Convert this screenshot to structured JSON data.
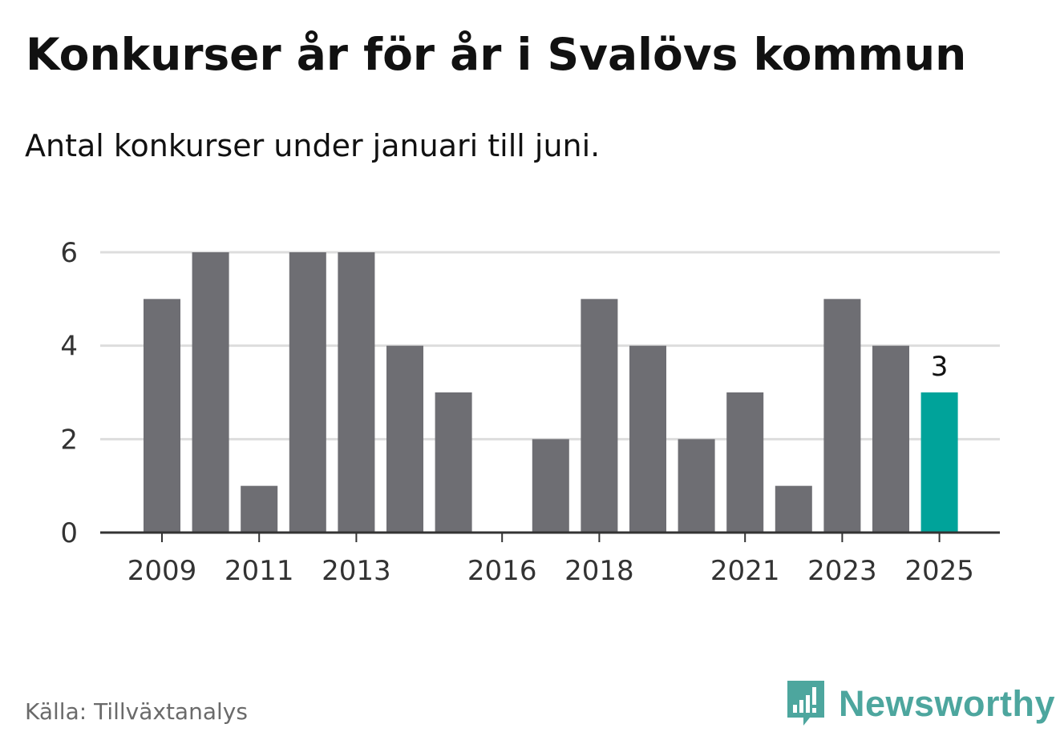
{
  "header": {
    "title": "Konkurser år för år i Svalövs kommun",
    "subtitle": "Antal konkurser under januari till juni."
  },
  "footer": {
    "source": "Källa: Tillväxtanalys",
    "brand": "Newsworthy",
    "brand_icon": "newsworthy-logo-icon"
  },
  "colors": {
    "bar": "#6e6e73",
    "highlight": "#00a39a",
    "grid": "#dddddd",
    "axis": "#333333",
    "brand": "#4da69e"
  },
  "chart_data": {
    "type": "bar",
    "categories": [
      "2009",
      "2010",
      "2011",
      "2012",
      "2013",
      "2014",
      "2015",
      "2016",
      "2017",
      "2018",
      "2019",
      "2020",
      "2021",
      "2022",
      "2023",
      "2024",
      "2025"
    ],
    "values": [
      5,
      6,
      1,
      6,
      6,
      4,
      3,
      0,
      2,
      5,
      4,
      2,
      3,
      1,
      5,
      4,
      3
    ],
    "highlight_index": 16,
    "data_labels": [
      {
        "index": 16,
        "text": "3"
      }
    ],
    "x_tick_labels": [
      "2009",
      "2011",
      "2013",
      "2016",
      "2018",
      "2021",
      "2023",
      "2025"
    ],
    "y_ticks": [
      0,
      2,
      4,
      6
    ],
    "ylim": [
      0,
      6
    ],
    "grid": true,
    "title": "Konkurser år för år i Svalövs kommun",
    "subtitle": "Antal konkurser under januari till juni.",
    "xlabel": "",
    "ylabel": ""
  }
}
